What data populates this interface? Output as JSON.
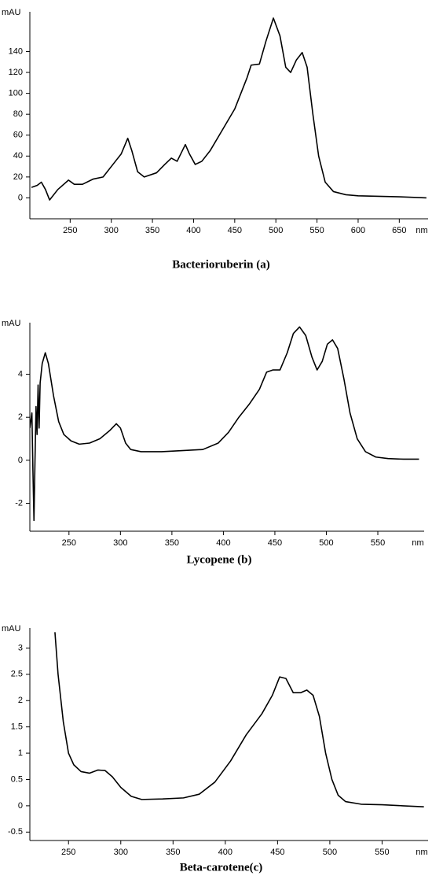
{
  "chart_data": [
    {
      "type": "line",
      "title": "Bacterioruberin (a)",
      "y_label": "mAU",
      "x_label": "nm",
      "color": "#000000",
      "xlim": [
        201,
        685
      ],
      "ylim": [
        -20,
        178
      ],
      "xticks": [
        250,
        300,
        350,
        400,
        450,
        500,
        550,
        600,
        650
      ],
      "yticks": [
        0,
        20,
        40,
        60,
        80,
        100,
        120,
        140
      ],
      "x": [
        203,
        210,
        215,
        220,
        225,
        235,
        248,
        255,
        265,
        278,
        290,
        305,
        312,
        320,
        325,
        332,
        340,
        355,
        365,
        373,
        380,
        390,
        395,
        402,
        410,
        420,
        435,
        450,
        465,
        470,
        480,
        488,
        497,
        505,
        512,
        518,
        525,
        532,
        538,
        545,
        552,
        560,
        570,
        585,
        600,
        650,
        683
      ],
      "values": [
        10,
        12,
        15,
        8,
        -2,
        8,
        17,
        13,
        13,
        18,
        20,
        35,
        42,
        57,
        45,
        25,
        20,
        24,
        32,
        38,
        35,
        51,
        42,
        32,
        35,
        45,
        65,
        85,
        115,
        127,
        128,
        150,
        172,
        155,
        125,
        120,
        132,
        139,
        125,
        80,
        40,
        15,
        6,
        3,
        2,
        1,
        0
      ]
    },
    {
      "type": "line",
      "title": "Lycopene (b)",
      "y_label": "mAU",
      "x_label": "nm",
      "color": "#000000",
      "xlim": [
        212,
        595
      ],
      "ylim": [
        -3.3,
        6.4
      ],
      "xticks": [
        250,
        300,
        350,
        400,
        450,
        500,
        550
      ],
      "yticks": [
        -2,
        0,
        2,
        4
      ],
      "x": [
        212,
        214,
        215,
        216,
        217,
        218,
        219,
        220,
        221,
        222,
        224,
        227,
        230,
        235,
        240,
        245,
        252,
        260,
        270,
        280,
        290,
        296,
        300,
        305,
        310,
        320,
        340,
        360,
        380,
        395,
        405,
        415,
        425,
        435,
        442,
        448,
        455,
        462,
        468,
        474,
        480,
        486,
        491,
        496,
        501,
        506,
        511,
        517,
        523,
        530,
        538,
        548,
        560,
        575,
        590
      ],
      "values": [
        1.5,
        2.2,
        -0.5,
        -2.8,
        0,
        2.5,
        1.2,
        3.5,
        1.5,
        3.6,
        4.5,
        5,
        4.5,
        3,
        1.8,
        1.2,
        0.9,
        0.75,
        0.8,
        1,
        1.4,
        1.7,
        1.5,
        0.8,
        0.5,
        0.4,
        0.4,
        0.45,
        0.5,
        0.8,
        1.3,
        2,
        2.6,
        3.3,
        4.1,
        4.2,
        4.2,
        5,
        5.9,
        6.2,
        5.8,
        4.8,
        4.2,
        4.6,
        5.4,
        5.6,
        5.2,
        3.8,
        2.2,
        1,
        0.4,
        0.15,
        0.08,
        0.05,
        0.05
      ]
    },
    {
      "type": "line",
      "title": "Beta-carotene(c)",
      "y_label": "mAU",
      "x_label": "nm",
      "color": "#000000",
      "xlim": [
        213,
        594
      ],
      "ylim": [
        -0.66,
        3.38
      ],
      "xticks": [
        250,
        300,
        350,
        400,
        450,
        500,
        550
      ],
      "yticks": [
        -0.5,
        0,
        0.5,
        1,
        1.5,
        2,
        2.5,
        3
      ],
      "x": [
        237,
        240,
        245,
        250,
        255,
        262,
        270,
        278,
        285,
        292,
        300,
        310,
        320,
        340,
        360,
        375,
        390,
        405,
        420,
        435,
        445,
        452,
        458,
        465,
        472,
        478,
        484,
        490,
        496,
        502,
        508,
        515,
        530,
        550,
        570,
        590
      ],
      "values": [
        3.3,
        2.5,
        1.6,
        1,
        0.78,
        0.65,
        0.62,
        0.68,
        0.67,
        0.55,
        0.35,
        0.18,
        0.12,
        0.13,
        0.15,
        0.22,
        0.45,
        0.85,
        1.35,
        1.75,
        2.1,
        2.45,
        2.42,
        2.15,
        2.15,
        2.2,
        2.1,
        1.7,
        1,
        0.5,
        0.2,
        0.08,
        0.03,
        0.02,
        0,
        -0.02
      ]
    }
  ]
}
